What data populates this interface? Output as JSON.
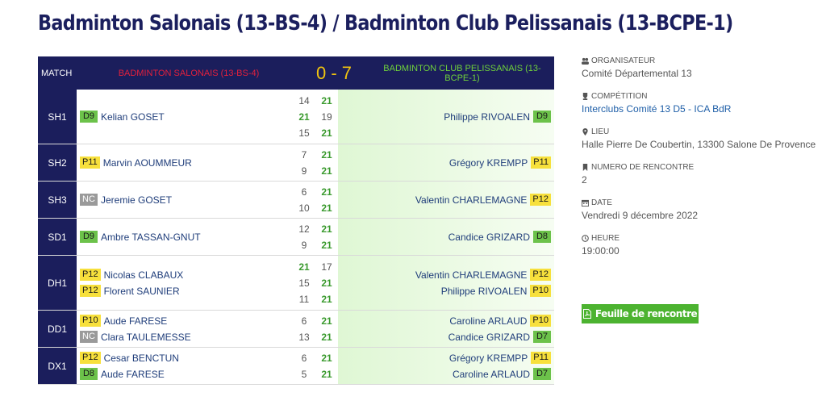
{
  "page": {
    "title": "Badminton Salonais (13-BS-4) / Badminton Club Pelissanais (13-BCPE-1)"
  },
  "header": {
    "match_label": "MATCH",
    "home_team": "BADMINTON SALONAIS (13-BS-4)",
    "score": "0 - 7",
    "away_team": "BADMINTON CLUB PELISSANAIS (13-BCPE-1)"
  },
  "colors": {
    "navy": "#1b1e5c",
    "home_red": "#e3203c",
    "score_yellow": "#f1c40f",
    "away_green": "#6fd13b",
    "win_green": "#3a9a2e",
    "button_green": "#4cb330"
  },
  "matches": [
    {
      "category": "SH1",
      "home": [
        {
          "rank": "D9",
          "name": "Kelian GOSET"
        }
      ],
      "sets": [
        [
          "14",
          "21"
        ],
        [
          "21",
          "19"
        ],
        [
          "15",
          "21"
        ]
      ],
      "away": [
        {
          "rank": "D9",
          "name": "Philippe RIVOALEN"
        }
      ]
    },
    {
      "category": "SH2",
      "home": [
        {
          "rank": "P11",
          "name": "Marvin AOUMMEUR"
        }
      ],
      "sets": [
        [
          "7",
          "21"
        ],
        [
          "9",
          "21"
        ]
      ],
      "away": [
        {
          "rank": "P11",
          "name": "Grégory KREMPP"
        }
      ]
    },
    {
      "category": "SH3",
      "home": [
        {
          "rank": "NC",
          "name": "Jeremie GOSET"
        }
      ],
      "sets": [
        [
          "6",
          "21"
        ],
        [
          "10",
          "21"
        ]
      ],
      "away": [
        {
          "rank": "P12",
          "name": "Valentin CHARLEMAGNE"
        }
      ]
    },
    {
      "category": "SD1",
      "home": [
        {
          "rank": "D9",
          "name": "Ambre TASSAN-GNUT"
        }
      ],
      "sets": [
        [
          "12",
          "21"
        ],
        [
          "9",
          "21"
        ]
      ],
      "away": [
        {
          "rank": "D8",
          "name": "Candice GRIZARD"
        }
      ]
    },
    {
      "category": "DH1",
      "home": [
        {
          "rank": "P12",
          "name": "Nicolas CLABAUX"
        },
        {
          "rank": "P12",
          "name": "Florent SAUNIER"
        }
      ],
      "sets": [
        [
          "21",
          "17"
        ],
        [
          "15",
          "21"
        ],
        [
          "11",
          "21"
        ]
      ],
      "away": [
        {
          "rank": "P12",
          "name": "Valentin CHARLEMAGNE"
        },
        {
          "rank": "P10",
          "name": "Philippe RIVOALEN"
        }
      ]
    },
    {
      "category": "DD1",
      "home": [
        {
          "rank": "P10",
          "name": "Aude FARESE"
        },
        {
          "rank": "NC",
          "name": "Clara TAULEMESSE"
        }
      ],
      "sets": [
        [
          "6",
          "21"
        ],
        [
          "13",
          "21"
        ]
      ],
      "away": [
        {
          "rank": "P10",
          "name": "Caroline ARLAUD"
        },
        {
          "rank": "D7",
          "name": "Candice GRIZARD"
        }
      ]
    },
    {
      "category": "DX1",
      "home": [
        {
          "rank": "P12",
          "name": "Cesar BENCTUN"
        },
        {
          "rank": "D8",
          "name": "Aude FARESE"
        }
      ],
      "sets": [
        [
          "6",
          "21"
        ],
        [
          "5",
          "21"
        ]
      ],
      "away": [
        {
          "rank": "P11",
          "name": "Grégory KREMPP"
        },
        {
          "rank": "D7",
          "name": "Caroline ARLAUD"
        }
      ]
    }
  ],
  "sidebar": {
    "organisateur": {
      "label": "ORGANISATEUR",
      "icon": "users-icon",
      "value": "Comité Départemental 13"
    },
    "competition": {
      "label": "COMPÉTITION",
      "icon": "trophy-icon",
      "value": "Interclubs Comité 13 D5 - ICA BdR"
    },
    "lieu": {
      "label": "LIEU",
      "icon": "map-marker-icon",
      "value": "Halle Pierre De Coubertin, 13300 Salone De Provence"
    },
    "numero": {
      "label": "NUMERO DE RENCONTRE",
      "icon": "bookmark-icon",
      "value": "2"
    },
    "date": {
      "label": "DATE",
      "icon": "calendar-icon",
      "value": "Vendredi 9 décembre 2022"
    },
    "heure": {
      "label": "HEURE",
      "icon": "clock-icon",
      "value": "19:00:00"
    }
  },
  "button": {
    "label": "Feuille de rencontre",
    "icon": "file-pdf-icon"
  }
}
